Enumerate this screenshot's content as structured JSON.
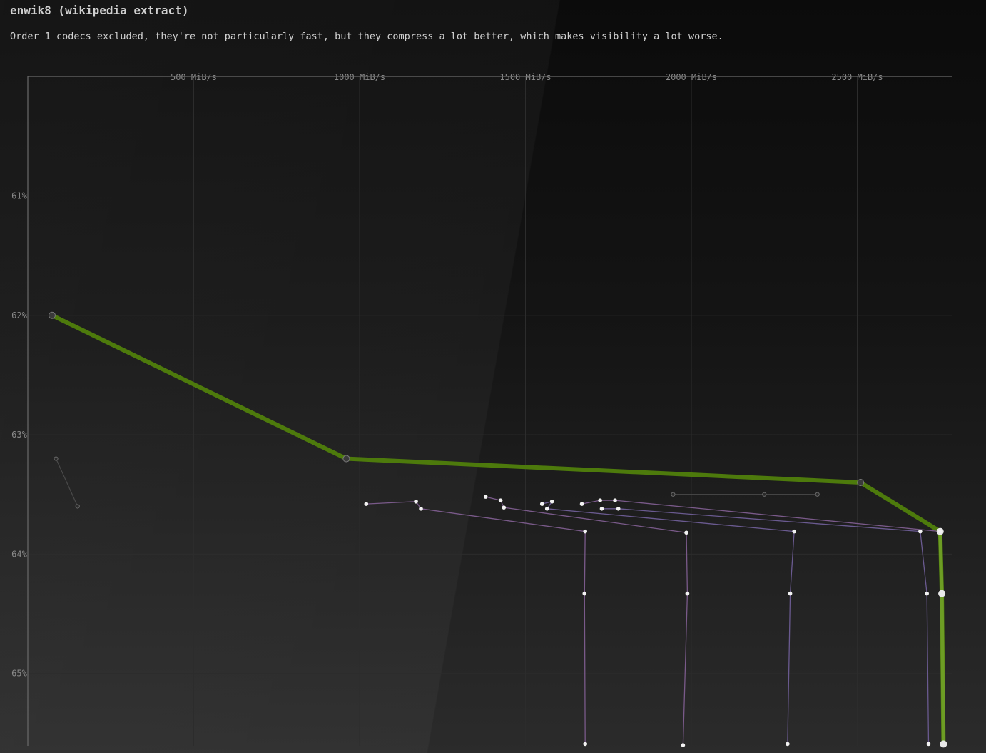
{
  "page": {
    "title": "enwik8 (wikipedia extract)",
    "subtitle": "Order 1 codecs excluded, they're not particularly fast, but they compress a lot better, which makes visibility a lot worse."
  },
  "colors": {
    "frontier": "#4d7a0c",
    "frontier_highlight": "#6d9d24",
    "series_purple": "#7a5a8a",
    "series_violet": "#6a5a90",
    "series_gray": "#4a4a4a",
    "point": "#f2f2f2",
    "grid": "#2c2c2c",
    "axis": "#6a6a6a"
  },
  "chart_data": {
    "type": "line",
    "title": "enwik8 (wikipedia extract)",
    "subtitle": "Order 1 codecs excluded, they're not particularly fast, but they compress a lot better, which makes visibility a lot worse.",
    "xlabel": "",
    "ylabel": "",
    "x_axis_position": "top",
    "y_inverted": true,
    "xlim": [
      0,
      2790
    ],
    "ylim": [
      60.0,
      65.6
    ],
    "x_ticks": [
      500,
      1000,
      1500,
      2000,
      2500
    ],
    "x_tick_labels": [
      "500 MiB/s",
      "1000 MiB/s",
      "1500 MiB/s",
      "2000 MiB/s",
      "2500 MiB/s"
    ],
    "y_ticks": [
      61,
      62,
      63,
      64,
      65
    ],
    "y_tick_labels": [
      "61%",
      "62%",
      "63%",
      "64%",
      "65%"
    ],
    "grid": true,
    "legend": "none",
    "series": [
      {
        "kind": "frontier",
        "points": [
          [
            73,
            62.0
          ],
          [
            960,
            63.2
          ],
          [
            2510,
            63.4
          ],
          [
            2750,
            63.81
          ],
          [
            2755,
            64.33
          ],
          [
            2760,
            65.59
          ]
        ]
      },
      {
        "kind": "gray",
        "points": [
          [
            85,
            63.2
          ],
          [
            150,
            63.6
          ]
        ]
      },
      {
        "kind": "gray",
        "points": [
          [
            1945,
            63.5
          ],
          [
            2220,
            63.5
          ],
          [
            2380,
            63.5
          ]
        ]
      },
      {
        "kind": "purple",
        "points": [
          [
            1020,
            63.58
          ],
          [
            1170,
            63.56
          ],
          [
            1185,
            63.62
          ],
          [
            1680,
            63.81
          ],
          [
            1678,
            64.33
          ],
          [
            1680,
            65.59
          ]
        ]
      },
      {
        "kind": "purple",
        "points": [
          [
            1380,
            63.52
          ],
          [
            1425,
            63.55
          ],
          [
            1435,
            63.61
          ],
          [
            1985,
            63.82
          ],
          [
            1988,
            64.33
          ],
          [
            1975,
            65.6
          ]
        ]
      },
      {
        "kind": "violet",
        "points": [
          [
            1550,
            63.58
          ],
          [
            1580,
            63.56
          ],
          [
            1565,
            63.62
          ],
          [
            2310,
            63.81
          ],
          [
            2298,
            64.33
          ],
          [
            2290,
            65.59
          ]
        ]
      },
      {
        "kind": "purple",
        "points": [
          [
            1670,
            63.58
          ],
          [
            1725,
            63.55
          ],
          [
            1770,
            63.55
          ],
          [
            2750,
            63.81
          ]
        ]
      },
      {
        "kind": "violet",
        "points": [
          [
            1730,
            63.62
          ],
          [
            1780,
            63.62
          ],
          [
            2690,
            63.81
          ],
          [
            2710,
            64.33
          ],
          [
            2715,
            65.59
          ]
        ]
      }
    ]
  }
}
